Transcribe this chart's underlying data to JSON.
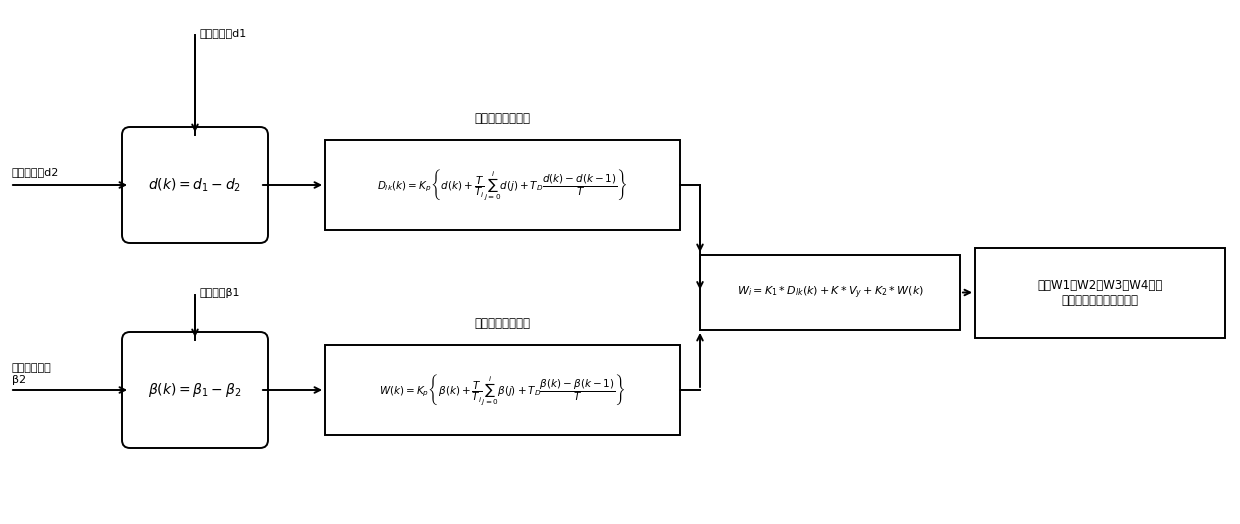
{
  "bg_color": "#ffffff",
  "line_color": "#000000",
  "label_top_input1": "左右偏移值d1",
  "label_top_input2": "给定偏移值d2",
  "label_bot_input1": "偏转角度β1",
  "label_bot_input2": "给定偏转角度\nβ2",
  "label_pid1_title": "车体横向位移输出",
  "label_pid2_title": "车体自转角度输出",
  "sum1_formula": "$d(k)=d_1-d_2$",
  "sum2_formula": "$\\beta(k)=\\beta_1-\\beta_2$",
  "pid1_formula": "$D_{lk}(k)=K_p\\left\\{d(k)+\\dfrac{T}{T_i}\\sum_{j=0}^{i}d(j)+T_D\\dfrac{d(k)-d(k-1)}{T}\\right\\}$",
  "pid2_formula": "$W(k)=K_p\\left\\{\\beta(k)+\\dfrac{T}{T_i}\\sum_{j=0}^{i}\\beta(j)+T_D\\dfrac{\\beta(k)-\\beta(k-1)}{T}\\right\\}$",
  "comb_formula": "$W_i=K_1*D_{lk}(k)+K*V_y+K_2*W(k)$",
  "out_text": "输出W1、W2、W3、W4车轮\n不同角速度调节车体变态"
}
